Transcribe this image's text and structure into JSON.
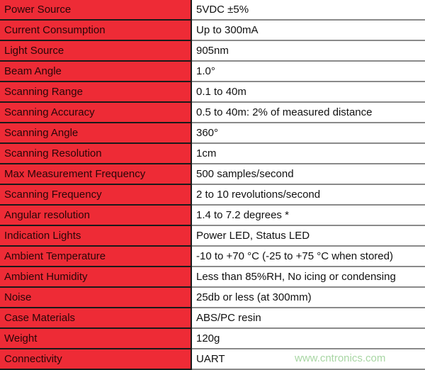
{
  "specs": [
    {
      "label": "Power Source",
      "value": "5VDC ±5%"
    },
    {
      "label": "Current Consumption",
      "value": "Up to 300mA"
    },
    {
      "label": "Light Source",
      "value": "905nm"
    },
    {
      "label": "Beam Angle",
      "value": "1.0°"
    },
    {
      "label": "Scanning Range",
      "value": "0.1 to 40m"
    },
    {
      "label": "Scanning Accuracy",
      "value": "0.5 to 40m: 2% of measured distance"
    },
    {
      "label": "Scanning Angle",
      "value": "360°"
    },
    {
      "label": "Scanning Resolution",
      "value": "1cm"
    },
    {
      "label": "Max Measurement Frequency",
      "value": "500 samples/second"
    },
    {
      "label": "Scanning Frequency",
      "value": "2 to 10 revolutions/second"
    },
    {
      "label": "Angular resolution",
      "value": "1.4 to 7.2 degrees *"
    },
    {
      "label": "Indication Lights",
      "value": "Power LED, Status LED"
    },
    {
      "label": "Ambient Temperature",
      "value": "-10 to +70 °C (-25 to +75 °C when stored)"
    },
    {
      "label": "Ambient Humidity",
      "value": "Less than 85%RH, No icing or condensing"
    },
    {
      "label": "Noise",
      "value": "25db or less (at 300mm)"
    },
    {
      "label": "Case Materials",
      "value": "ABS/PC resin"
    },
    {
      "label": "Weight",
      "value": "120g"
    },
    {
      "label": "Connectivity",
      "value": "UART"
    }
  ],
  "watermark": "www.cntronics.com",
  "colors": {
    "label_bg": "#ee2b36",
    "value_bg": "#ffffff"
  }
}
